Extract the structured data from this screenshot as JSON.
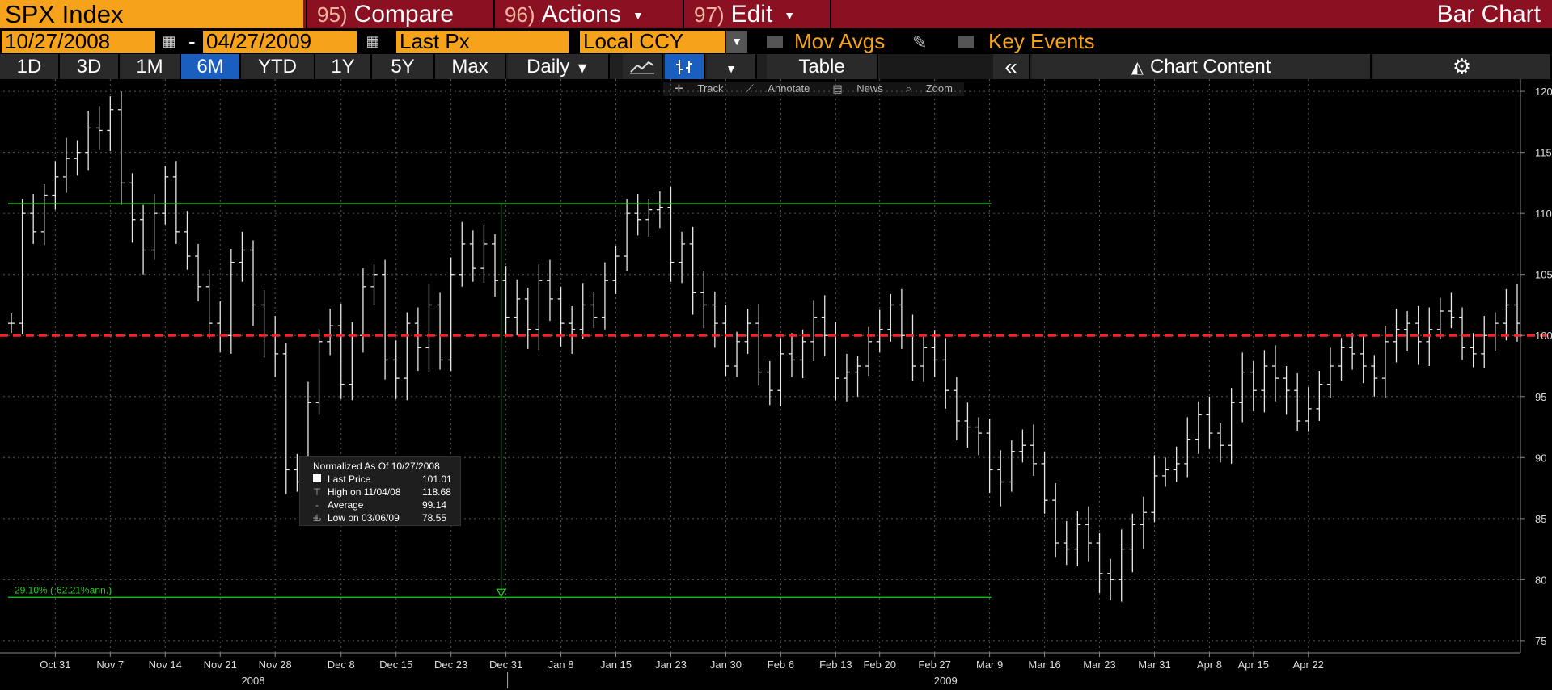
{
  "header": {
    "ticker": "SPX Index",
    "menus": [
      {
        "num": "95)",
        "label": "Compare",
        "caret": false
      },
      {
        "num": "96)",
        "label": "Actions",
        "caret": true
      },
      {
        "num": "97)",
        "label": "Edit",
        "caret": true
      }
    ],
    "title": "Bar Chart"
  },
  "settings": {
    "start_date": "10/27/2008",
    "end_date": "04/27/2009",
    "dash": "-",
    "field": "Last Px",
    "currency": "Local CCY",
    "mov_avgs": "Mov Avgs",
    "key_events": "Key Events"
  },
  "periods": [
    "1D",
    "3D",
    "1M",
    "6M",
    "YTD",
    "1Y",
    "5Y",
    "Max"
  ],
  "active_period": "6M",
  "toolbar": {
    "frequency": "Daily",
    "table": "Table",
    "collapse": "«",
    "chart_content": "Chart Content"
  },
  "chart_tools": [
    "Track",
    "Annotate",
    "News",
    "Zoom"
  ],
  "legend": {
    "header": "Normalized As Of 10/27/2008",
    "rows": [
      {
        "label": "Last Price",
        "value": "101.01"
      },
      {
        "label": "High on 11/04/08",
        "value": "118.68"
      },
      {
        "label": "Average",
        "value": "99.14"
      },
      {
        "label": "Low on 03/06/09",
        "value": "78.55"
      }
    ]
  },
  "annotation": "-29.10% (-62.21%ann.)",
  "colors": {
    "orange": "#f7a21b",
    "header_red": "#8b1022",
    "active_blue": "#1a5fbf",
    "ref_line": "#ff2222",
    "measure_green": "#22cc22"
  },
  "chart_data": {
    "type": "ohlc",
    "ylim": [
      74,
      121
    ],
    "y_ticks": [
      75,
      80,
      85,
      90,
      95,
      100,
      105,
      110,
      115,
      120
    ],
    "reference_value": 100,
    "x_ticks": [
      "Oct 31",
      "Nov 7",
      "Nov 14",
      "Nov 21",
      "Nov 28",
      "Dec 8",
      "Dec 15",
      "Dec 23",
      "Dec 31",
      "Jan 8",
      "Jan 15",
      "Jan 23",
      "Jan 30",
      "Feb 6",
      "Feb 13",
      "Feb 20",
      "Feb 27",
      "Mar 9",
      "Mar 16",
      "Mar 23",
      "Mar 31",
      "Apr 8",
      "Apr 15",
      "Apr 22"
    ],
    "x_tick_index": [
      4,
      9,
      14,
      19,
      24,
      30,
      35,
      40,
      45,
      50,
      55,
      60,
      65,
      70,
      75,
      79,
      84,
      89,
      94,
      99,
      104,
      109,
      113,
      118
    ],
    "year_labels": [
      {
        "label": "2008",
        "index": 22
      },
      {
        "label": "2009",
        "index": 85
      }
    ],
    "year_separator_index": 45,
    "measure": {
      "start_index": 45,
      "end_index": 89,
      "high": 110.8,
      "low": 78.55
    },
    "closes": [
      101.0,
      110.0,
      108.5,
      111.5,
      113.0,
      114.5,
      115.0,
      117.0,
      116.8,
      118.5,
      112.5,
      109.5,
      107.0,
      110.0,
      113.0,
      108.5,
      106.5,
      104.0,
      101.0,
      100.0,
      106.0,
      107.0,
      102.5,
      100.0,
      98.5,
      89.0,
      88.0,
      94.5,
      99.5,
      100.8,
      96.0,
      100.0,
      104.0,
      105.0,
      98.0,
      96.5,
      101.0,
      99.0,
      102.5,
      98.0,
      105.0,
      107.5,
      105.5,
      107.5,
      104.5,
      101.5,
      103.0,
      100.5,
      104.5,
      103.0,
      101.0,
      100.5,
      102.5,
      101.5,
      104.5,
      106.5,
      110.0,
      109.5,
      110.3,
      110.5,
      106.0,
      107.5,
      103.5,
      102.5,
      101.0,
      97.5,
      99.5,
      101.0,
      97.0,
      95.5,
      98.5,
      98.0,
      99.5,
      101.5,
      100.0,
      96.5,
      97.0,
      97.5,
      99.5,
      100.5,
      102.5,
      100.0,
      97.5,
      99.0,
      98.0,
      95.5,
      93.0,
      92.5,
      92.0,
      89.0,
      88.0,
      90.5,
      91.0,
      89.5,
      86.5,
      83.0,
      82.5,
      84.5,
      83.0,
      80.5,
      80.0,
      82.5,
      84.5,
      85.5,
      88.5,
      89.0,
      89.5,
      91.5,
      93.5,
      92.0,
      91.0,
      94.5,
      97.0,
      95.5,
      97.5,
      96.5,
      95.5,
      93.0,
      94.0,
      96.0,
      97.5,
      99.0,
      98.5,
      97.5,
      96.5,
      99.5,
      100.5,
      101.0,
      99.5,
      100.5,
      102.0,
      101.5,
      99.0,
      98.5,
      100.0,
      101.0,
      102.5,
      101.0
    ]
  }
}
